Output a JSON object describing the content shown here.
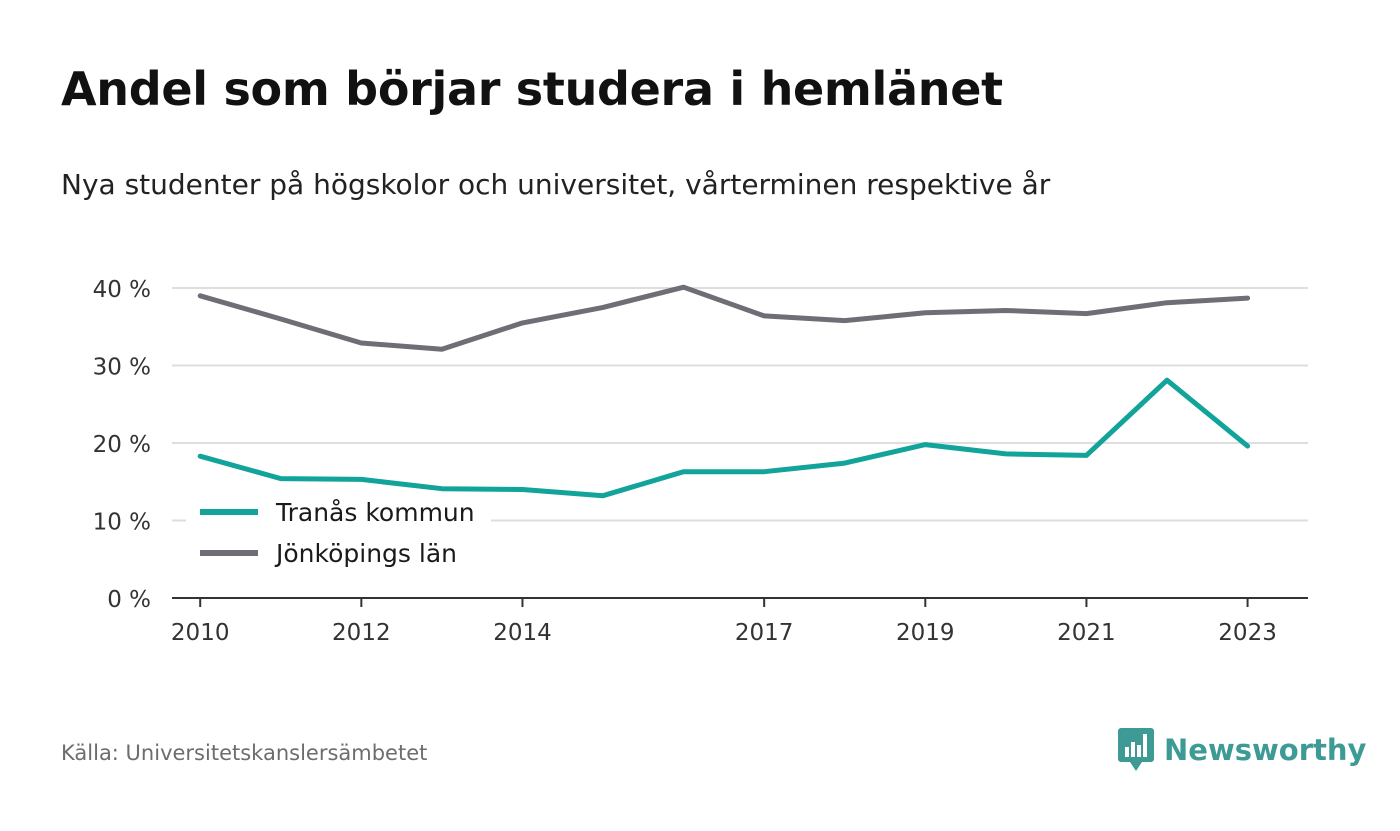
{
  "title": "Andel som börjar studera i hemlänet",
  "subtitle": "Nya studenter på högskolor och universitet, vårterminen respektive år",
  "source": "Källa: Universitetskanslersämbetet",
  "brand": {
    "name": "Newsworthy",
    "icon": "newsworthy-logo-icon",
    "color": "#3d9a95"
  },
  "chart_data": {
    "type": "line",
    "x": [
      2010,
      2011,
      2012,
      2013,
      2014,
      2015,
      2016,
      2017,
      2018,
      2019,
      2020,
      2021,
      2022,
      2023
    ],
    "xticks": [
      2010,
      2012,
      2014,
      2017,
      2019,
      2021,
      2023
    ],
    "xtick_labels": [
      "2010",
      "2012",
      "2014",
      "2017",
      "2019",
      "2021",
      "2023"
    ],
    "xlim": [
      2009.65,
      2023.75
    ],
    "ylim": [
      0,
      40
    ],
    "yticks": [
      0,
      10,
      20,
      30,
      40
    ],
    "ytick_labels": [
      "0 %",
      "10 %",
      "20 %",
      "30 %",
      "40 %"
    ],
    "grid": true,
    "legend_position": "bottom-left",
    "series": [
      {
        "name": "Tranås kommun",
        "color": "#12a39a",
        "values": [
          18.3,
          15.4,
          15.3,
          14.1,
          14.0,
          13.2,
          16.3,
          16.3,
          17.4,
          19.8,
          18.6,
          18.4,
          28.1,
          19.6
        ]
      },
      {
        "name": "Jönköpings län",
        "color": "#6f6e76",
        "values": [
          39.0,
          36.0,
          32.9,
          32.1,
          35.5,
          37.5,
          40.1,
          36.4,
          35.8,
          36.8,
          37.1,
          36.7,
          38.1,
          38.7
        ]
      }
    ]
  }
}
